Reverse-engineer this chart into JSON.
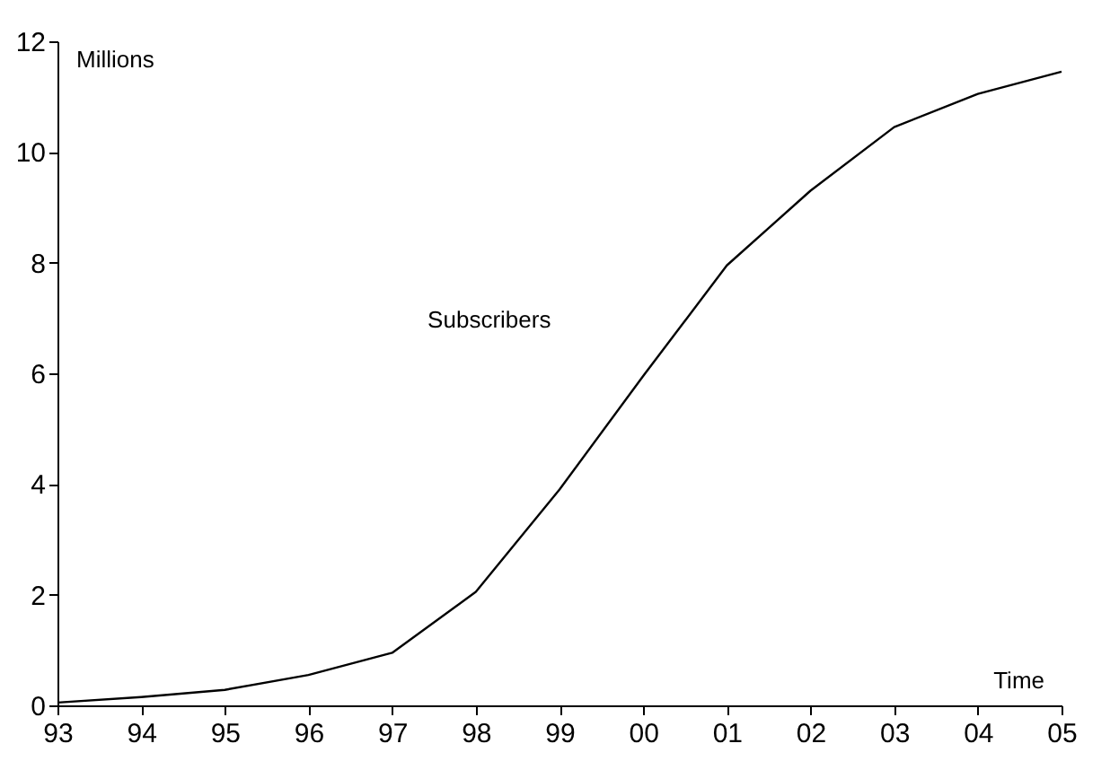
{
  "chart_data": {
    "type": "line",
    "xlabel": "Time",
    "ylabel": "Millions",
    "categories": [
      "93",
      "94",
      "95",
      "96",
      "97",
      "98",
      "99",
      "00",
      "01",
      "02",
      "03",
      "04",
      "05"
    ],
    "series": [
      {
        "name": "Subscribers",
        "color": "#000000",
        "values": [
          0.05,
          0.15,
          0.28,
          0.55,
          0.95,
          2.05,
          3.9,
          5.95,
          7.95,
          9.3,
          10.45,
          11.05,
          11.45
        ]
      }
    ],
    "ylim": [
      0,
      12
    ],
    "yticks": [
      0,
      2,
      4,
      6,
      8,
      10,
      12
    ],
    "grid": false,
    "marker": "none",
    "line_style": "solid"
  }
}
